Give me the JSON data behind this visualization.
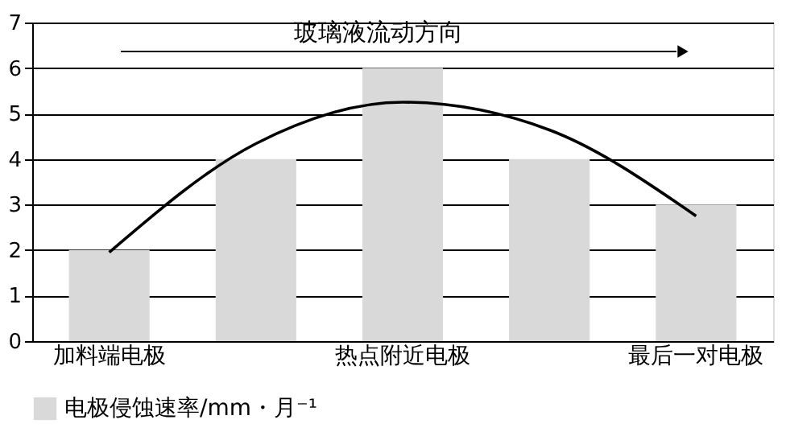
{
  "chart_data": {
    "type": "bar",
    "categories": [
      "加料端电极",
      null,
      "热点附近电极",
      null,
      "最后一对电极"
    ],
    "series": [
      {
        "name": "电极侵蚀速率/mm・月⁻¹",
        "color": "#d9d9d9",
        "values": [
          2,
          4,
          6,
          4,
          3
        ]
      },
      {
        "type": "line",
        "color": "#000000",
        "values": [
          1.95,
          4.34,
          5.25,
          4.64,
          2.75
        ]
      }
    ],
    "ylim": [
      0,
      7
    ],
    "yticks": [
      0,
      1,
      2,
      3,
      4,
      5,
      6,
      7
    ],
    "grid": "y",
    "legend": "bottom",
    "annotations": [
      "玻璃液流动方向"
    ]
  }
}
